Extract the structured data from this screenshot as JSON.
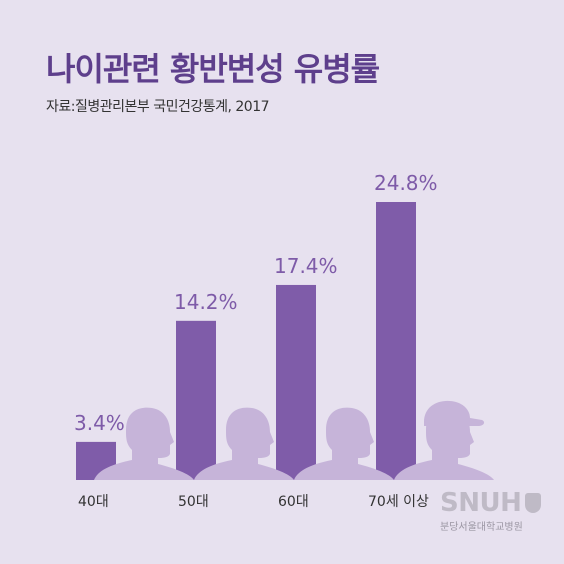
{
  "header": {
    "title": "나이관련 황반변성 유병률",
    "source": "자료:질병관리본부 국민건강통계, 2017"
  },
  "logo": {
    "main": "SNUH",
    "sub": "분당서울대학교병원"
  },
  "colors": {
    "background": "#e7e1ef",
    "bar": "#7f5ca9",
    "silhouette": "#c6b4d9",
    "title": "#5e3f8c"
  },
  "chart_data": {
    "type": "bar",
    "title": "",
    "xlabel": "",
    "ylabel": "",
    "categories": [
      "40대",
      "50대",
      "60대",
      "70세 이상"
    ],
    "values": [
      3.4,
      14.2,
      17.4,
      24.8
    ],
    "value_labels": [
      "3.4%",
      "14.2%",
      "17.4%",
      "24.8%"
    ],
    "ylim": [
      0,
      30
    ],
    "grid": false,
    "legend": "none",
    "icons": [
      "person-silhouette-icon",
      "person-silhouette-icon",
      "person-silhouette-icon",
      "person-with-cap-silhouette-icon"
    ]
  }
}
